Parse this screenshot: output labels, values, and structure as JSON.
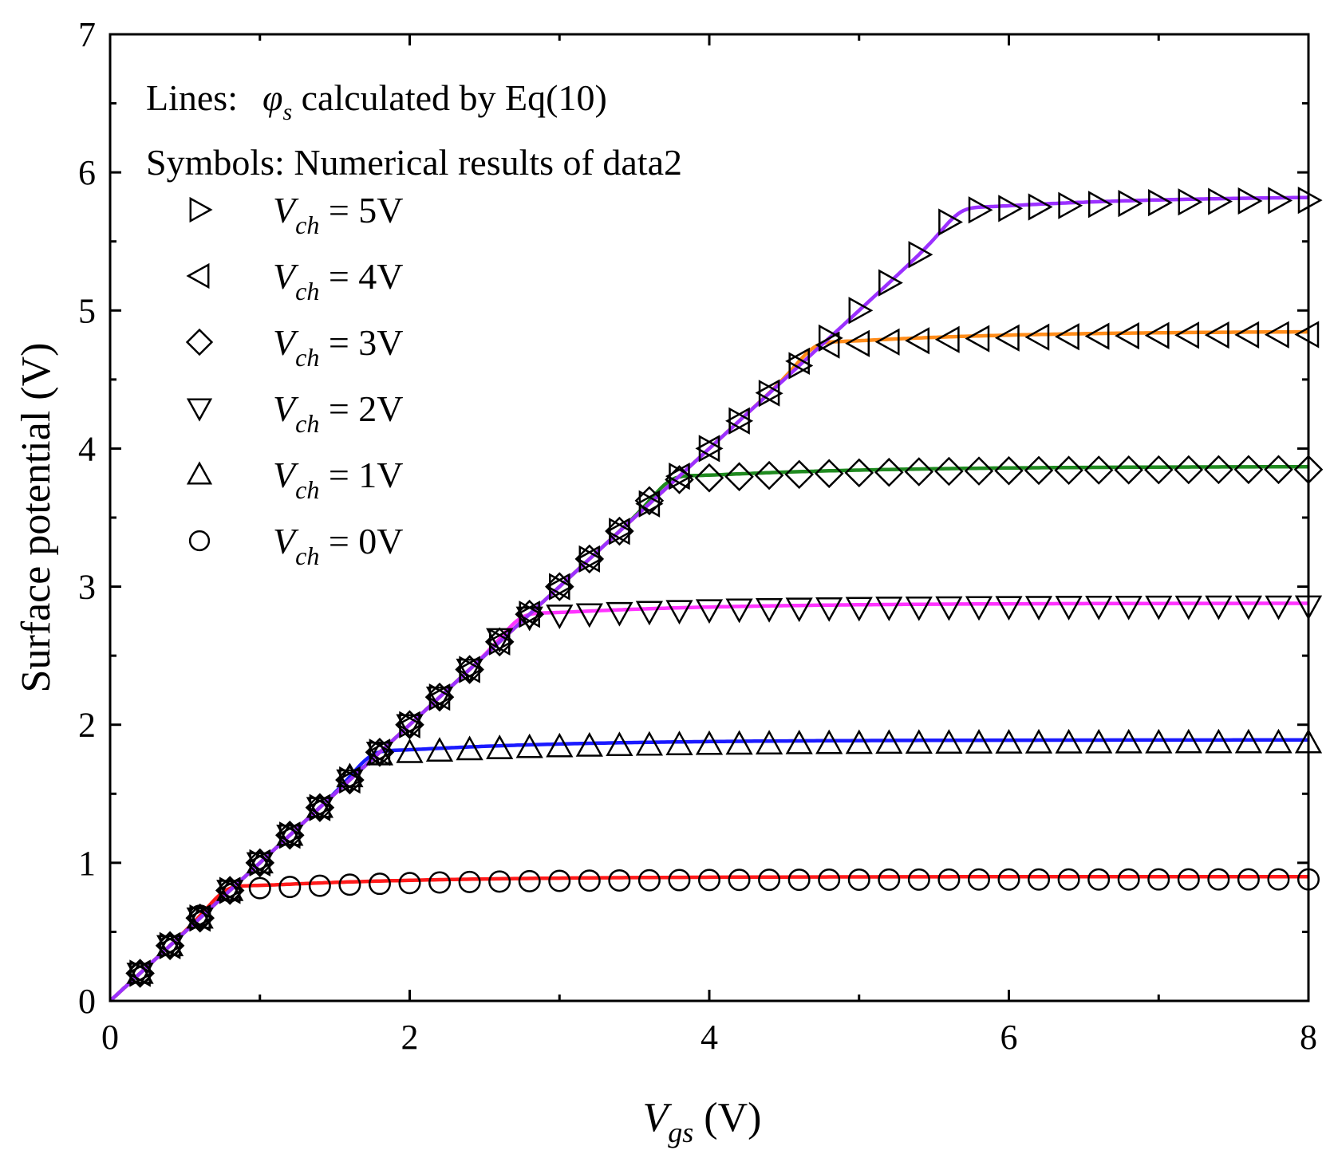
{
  "chart_data": {
    "type": "line",
    "title": "",
    "xlabel": {
      "main": "V",
      "sub": "gs",
      "unit": " (V)"
    },
    "ylabel": "Surface potential (V)",
    "xlim": [
      0,
      8
    ],
    "ylim": [
      0,
      7
    ],
    "xticks": [
      0,
      2,
      4,
      6,
      8
    ],
    "yticks": [
      0,
      1,
      2,
      3,
      4,
      5,
      6,
      7
    ],
    "grid": false,
    "annotations": {
      "line1_prefix": "Lines:  ",
      "line1_symbol": "φ",
      "line1_symbol_sub": "s",
      "line1_suffix": " calculated by Eq(10)",
      "line2": "Symbols: Numerical results of data2"
    },
    "legend_position": "top-left",
    "series": [
      {
        "name": "V_ch = 5V",
        "label_var": "V",
        "label_sub": "ch",
        "label_value": " = 5V",
        "marker": "triangle-right",
        "color": "#9b30ff",
        "saturation": 5.83,
        "knee": 5.65
      },
      {
        "name": "V_ch = 4V",
        "label_var": "V",
        "label_sub": "ch",
        "label_value": " = 4V",
        "marker": "triangle-left",
        "color": "#ff8c1a",
        "saturation": 4.85,
        "knee": 4.68
      },
      {
        "name": "V_ch = 3V",
        "label_var": "V",
        "label_sub": "ch",
        "label_value": " = 3V",
        "marker": "diamond",
        "color": "#1f8a1f",
        "saturation": 3.87,
        "knee": 3.72
      },
      {
        "name": "V_ch = 2V",
        "label_var": "V",
        "label_sub": "ch",
        "label_value": " = 2V",
        "marker": "triangle-down",
        "color": "#ff33ff",
        "saturation": 2.88,
        "knee": 2.72
      },
      {
        "name": "V_ch = 1V",
        "label_var": "V",
        "label_sub": "ch",
        "label_value": " = 1V",
        "marker": "triangle-up",
        "color": "#1a1aff",
        "saturation": 1.89,
        "knee": 1.72
      },
      {
        "name": "V_ch = 0V",
        "label_var": "V",
        "label_sub": "ch",
        "label_value": " = 0V",
        "marker": "circle",
        "color": "#ff1a1a",
        "saturation": 0.9,
        "knee": 0.75
      }
    ]
  }
}
